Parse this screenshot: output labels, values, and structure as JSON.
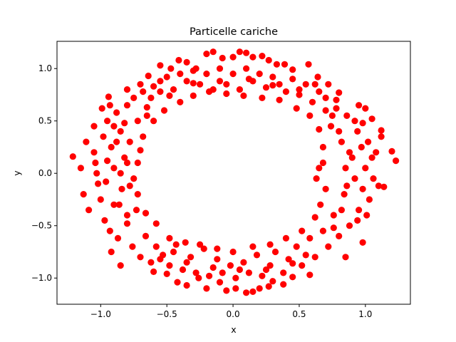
{
  "chart_data": {
    "type": "scatter",
    "title": "Particelle cariche",
    "xlabel": "x",
    "ylabel": "y",
    "xlim": [
      -1.33,
      1.34
    ],
    "ylim": [
      -1.25,
      1.26
    ],
    "xticks": [
      {
        "value": -1.0,
        "label": "−1.0"
      },
      {
        "value": -0.5,
        "label": "−0.5"
      },
      {
        "value": 0.0,
        "label": "0.0"
      },
      {
        "value": 0.5,
        "label": "0.5"
      },
      {
        "value": 1.0,
        "label": "1.0"
      }
    ],
    "yticks": [
      {
        "value": -1.0,
        "label": "−1.0"
      },
      {
        "value": -0.5,
        "label": "−0.5"
      },
      {
        "value": 0.0,
        "label": "0.0"
      },
      {
        "value": 0.5,
        "label": "0.5"
      },
      {
        "value": 1.0,
        "label": "1.0"
      }
    ],
    "grid": false,
    "legend": "none",
    "marker_color": "#ff0000",
    "points": [
      [
        -1.21,
        0.16
      ],
      [
        1.23,
        0.12
      ],
      [
        -1.15,
        0.05
      ],
      [
        1.14,
        -0.13
      ],
      [
        1.2,
        0.21
      ],
      [
        -1.13,
        -0.2
      ],
      [
        1.12,
        0.41
      ],
      [
        -1.11,
        0.3
      ],
      [
        -1.09,
        -0.35
      ],
      [
        1.12,
        0.35
      ],
      [
        -1.05,
        0.45
      ],
      [
        1.05,
        0.52
      ],
      [
        -0.99,
        0.62
      ],
      [
        1.0,
        0.62
      ],
      [
        -0.93,
        0.65
      ],
      [
        -0.94,
        0.73
      ],
      [
        0.95,
        0.65
      ],
      [
        -0.92,
        -0.75
      ],
      [
        0.98,
        -0.66
      ],
      [
        -0.85,
        -0.88
      ],
      [
        0.85,
        -0.8
      ],
      [
        -0.8,
        0.8
      ],
      [
        0.8,
        0.77
      ],
      [
        -0.7,
        0.85
      ],
      [
        0.72,
        0.85
      ],
      [
        -0.64,
        0.93
      ],
      [
        0.64,
        0.92
      ],
      [
        -0.55,
        1.03
      ],
      [
        0.57,
        1.04
      ],
      [
        -0.47,
        1.0
      ],
      [
        0.45,
        0.99
      ],
      [
        -0.41,
        1.08
      ],
      [
        0.39,
        1.04
      ],
      [
        -0.35,
        1.06
      ],
      [
        0.33,
        1.04
      ],
      [
        -0.28,
        1.0
      ],
      [
        0.27,
        1.08
      ],
      [
        -0.2,
        1.14
      ],
      [
        -0.15,
        1.16
      ],
      [
        0.05,
        1.16
      ],
      [
        0.1,
        1.15
      ],
      [
        0.15,
        1.11
      ],
      [
        -0.08,
        1.1
      ],
      [
        0.0,
        1.11
      ],
      [
        0.22,
        1.12
      ],
      [
        -0.6,
        -0.94
      ],
      [
        0.58,
        -0.97
      ],
      [
        -0.5,
        -0.96
      ],
      [
        0.45,
        -0.99
      ],
      [
        -0.42,
        -1.04
      ],
      [
        0.38,
        -1.06
      ],
      [
        -0.35,
        -1.07
      ],
      [
        0.3,
        -1.03
      ],
      [
        -0.26,
        -1.0
      ],
      [
        0.27,
        -1.08
      ],
      [
        -0.2,
        -1.1
      ],
      [
        0.2,
        -1.1
      ],
      [
        -0.1,
        -1.04
      ],
      [
        0.1,
        -1.14
      ],
      [
        0.15,
        -1.13
      ],
      [
        0.02,
        -1.1
      ],
      [
        -0.05,
        -1.12
      ],
      [
        -1.05,
        0.2
      ],
      [
        -1.04,
        0.1
      ],
      [
        -1.03,
        0.0
      ],
      [
        -1.02,
        -0.1
      ],
      [
        -1.0,
        -0.25
      ],
      [
        -0.98,
        0.35
      ],
      [
        -0.97,
        -0.45
      ],
      [
        -0.95,
        0.5
      ],
      [
        -0.93,
        -0.55
      ],
      [
        -0.92,
        0.25
      ],
      [
        -0.9,
        -0.3
      ],
      [
        -0.9,
        0.05
      ],
      [
        -0.88,
        0.58
      ],
      [
        -0.87,
        -0.62
      ],
      [
        -0.85,
        0.4
      ],
      [
        -0.84,
        -0.15
      ],
      [
        -0.82,
        0.15
      ],
      [
        -0.8,
        -0.48
      ],
      [
        -0.8,
        0.65
      ],
      [
        -0.78,
        0.3
      ],
      [
        -0.76,
        -0.7
      ],
      [
        -0.75,
        0.72
      ],
      [
        -0.73,
        -0.35
      ],
      [
        -0.72,
        0.5
      ],
      [
        -0.7,
        -0.8
      ],
      [
        -0.68,
        0.78
      ],
      [
        -0.66,
        -0.6
      ],
      [
        -0.65,
        0.63
      ],
      [
        -0.62,
        -0.85
      ],
      [
        -0.6,
        0.83
      ],
      [
        -0.58,
        -0.7
      ],
      [
        -0.55,
        0.88
      ],
      [
        -0.53,
        -0.78
      ],
      [
        -0.5,
        0.92
      ],
      [
        -0.48,
        -0.88
      ],
      [
        -0.45,
        0.8
      ],
      [
        -0.43,
        -0.68
      ],
      [
        -0.4,
        0.95
      ],
      [
        -0.38,
        -0.92
      ],
      [
        -0.35,
        0.88
      ],
      [
        -0.32,
        -0.8
      ],
      [
        -0.3,
        0.98
      ],
      [
        -0.28,
        -0.95
      ],
      [
        -0.25,
        0.85
      ],
      [
        -0.22,
        -0.72
      ],
      [
        -0.2,
        0.95
      ],
      [
        -0.18,
        -0.98
      ],
      [
        -0.15,
        0.8
      ],
      [
        -0.12,
        -0.82
      ],
      [
        -0.1,
        1.0
      ],
      [
        -0.08,
        -0.95
      ],
      [
        -0.05,
        0.85
      ],
      [
        -0.02,
        -0.88
      ],
      [
        0.0,
        0.95
      ],
      [
        0.02,
        -1.0
      ],
      [
        0.05,
        0.8
      ],
      [
        0.08,
        -0.85
      ],
      [
        0.1,
        1.0
      ],
      [
        0.12,
        -0.95
      ],
      [
        0.15,
        0.88
      ],
      [
        0.18,
        -0.78
      ],
      [
        0.2,
        0.95
      ],
      [
        0.22,
        -0.98
      ],
      [
        0.25,
        0.82
      ],
      [
        0.28,
        -0.88
      ],
      [
        0.3,
        0.92
      ],
      [
        0.32,
        -0.75
      ],
      [
        0.35,
        0.85
      ],
      [
        0.38,
        -0.95
      ],
      [
        0.4,
        0.78
      ],
      [
        0.42,
        -0.82
      ],
      [
        0.45,
        0.9
      ],
      [
        0.48,
        -0.7
      ],
      [
        0.5,
        0.75
      ],
      [
        0.52,
        -0.88
      ],
      [
        0.55,
        0.85
      ],
      [
        0.58,
        -0.62
      ],
      [
        0.6,
        0.68
      ],
      [
        0.62,
        -0.8
      ],
      [
        0.65,
        0.78
      ],
      [
        0.68,
        -0.55
      ],
      [
        0.7,
        0.6
      ],
      [
        0.72,
        -0.7
      ],
      [
        0.74,
        0.45
      ],
      [
        0.76,
        -0.4
      ],
      [
        0.78,
        0.7
      ],
      [
        0.8,
        -0.6
      ],
      [
        0.82,
        0.3
      ],
      [
        0.84,
        -0.2
      ],
      [
        0.86,
        0.55
      ],
      [
        0.88,
        -0.5
      ],
      [
        0.9,
        0.15
      ],
      [
        0.92,
        -0.05
      ],
      [
        0.94,
        0.4
      ],
      [
        0.95,
        -0.35
      ],
      [
        0.97,
        0.25
      ],
      [
        0.98,
        -0.15
      ],
      [
        1.0,
        0.05
      ],
      [
        1.02,
        0.3
      ],
      [
        1.03,
        -0.25
      ],
      [
        1.05,
        0.15
      ],
      [
        1.06,
        -0.05
      ],
      [
        1.08,
        0.2
      ],
      [
        1.1,
        -0.12
      ],
      [
        1.01,
        -0.4
      ],
      [
        -0.72,
        0.1
      ],
      [
        -0.75,
        -0.05
      ],
      [
        -0.7,
        0.22
      ],
      [
        -0.72,
        -0.2
      ],
      [
        -0.68,
        0.35
      ],
      [
        -0.66,
        -0.38
      ],
      [
        -0.6,
        0.5
      ],
      [
        -0.58,
        -0.48
      ],
      [
        -0.52,
        0.6
      ],
      [
        -0.48,
        -0.62
      ],
      [
        -0.4,
        0.68
      ],
      [
        -0.36,
        -0.66
      ],
      [
        -0.3,
        0.74
      ],
      [
        -0.25,
        -0.68
      ],
      [
        -0.18,
        0.78
      ],
      [
        -0.12,
        -0.72
      ],
      [
        -0.05,
        0.76
      ],
      [
        0.0,
        -0.75
      ],
      [
        0.08,
        0.74
      ],
      [
        0.15,
        -0.7
      ],
      [
        0.22,
        0.72
      ],
      [
        0.28,
        -0.68
      ],
      [
        0.35,
        0.7
      ],
      [
        0.4,
        -0.62
      ],
      [
        0.48,
        0.62
      ],
      [
        0.52,
        -0.55
      ],
      [
        0.58,
        0.55
      ],
      [
        0.62,
        -0.42
      ],
      [
        0.65,
        0.42
      ],
      [
        0.66,
        -0.3
      ],
      [
        0.68,
        0.25
      ],
      [
        0.7,
        -0.15
      ],
      [
        0.65,
        0.05
      ],
      [
        0.68,
        0.1
      ],
      [
        0.63,
        -0.05
      ],
      [
        -0.95,
        0.12
      ],
      [
        -0.96,
        -0.08
      ],
      [
        -0.88,
        0.3
      ],
      [
        -0.86,
        -0.3
      ],
      [
        -0.82,
        0.48
      ],
      [
        -0.8,
        -0.4
      ],
      [
        -0.85,
        0.0
      ],
      [
        -0.8,
        0.1
      ],
      [
        -0.78,
        -0.12
      ],
      [
        0.85,
        0.05
      ],
      [
        0.88,
        0.2
      ],
      [
        0.86,
        -0.12
      ],
      [
        0.8,
        0.4
      ],
      [
        0.82,
        -0.35
      ],
      [
        0.75,
        0.55
      ],
      [
        0.76,
        -0.52
      ],
      [
        0.92,
        0.5
      ],
      [
        0.94,
        -0.45
      ],
      [
        0.98,
        0.48
      ],
      [
        -0.62,
        0.72
      ],
      [
        -0.55,
        0.78
      ],
      [
        -0.48,
        0.74
      ],
      [
        -0.45,
        -0.75
      ],
      [
        -0.55,
        -0.82
      ],
      [
        -0.35,
        -0.85
      ],
      [
        -0.15,
        -0.9
      ],
      [
        0.05,
        -0.92
      ],
      [
        0.25,
        -0.92
      ],
      [
        0.45,
        -0.86
      ],
      [
        0.55,
        -0.78
      ],
      [
        -0.3,
        0.86
      ],
      [
        -0.1,
        0.88
      ],
      [
        0.12,
        0.9
      ],
      [
        0.3,
        0.84
      ],
      [
        0.5,
        0.8
      ],
      [
        0.62,
        0.85
      ],
      [
        0.7,
        0.72
      ],
      [
        0.78,
        0.62
      ],
      [
        -0.65,
        0.55
      ],
      [
        -0.9,
        0.45
      ]
    ]
  }
}
